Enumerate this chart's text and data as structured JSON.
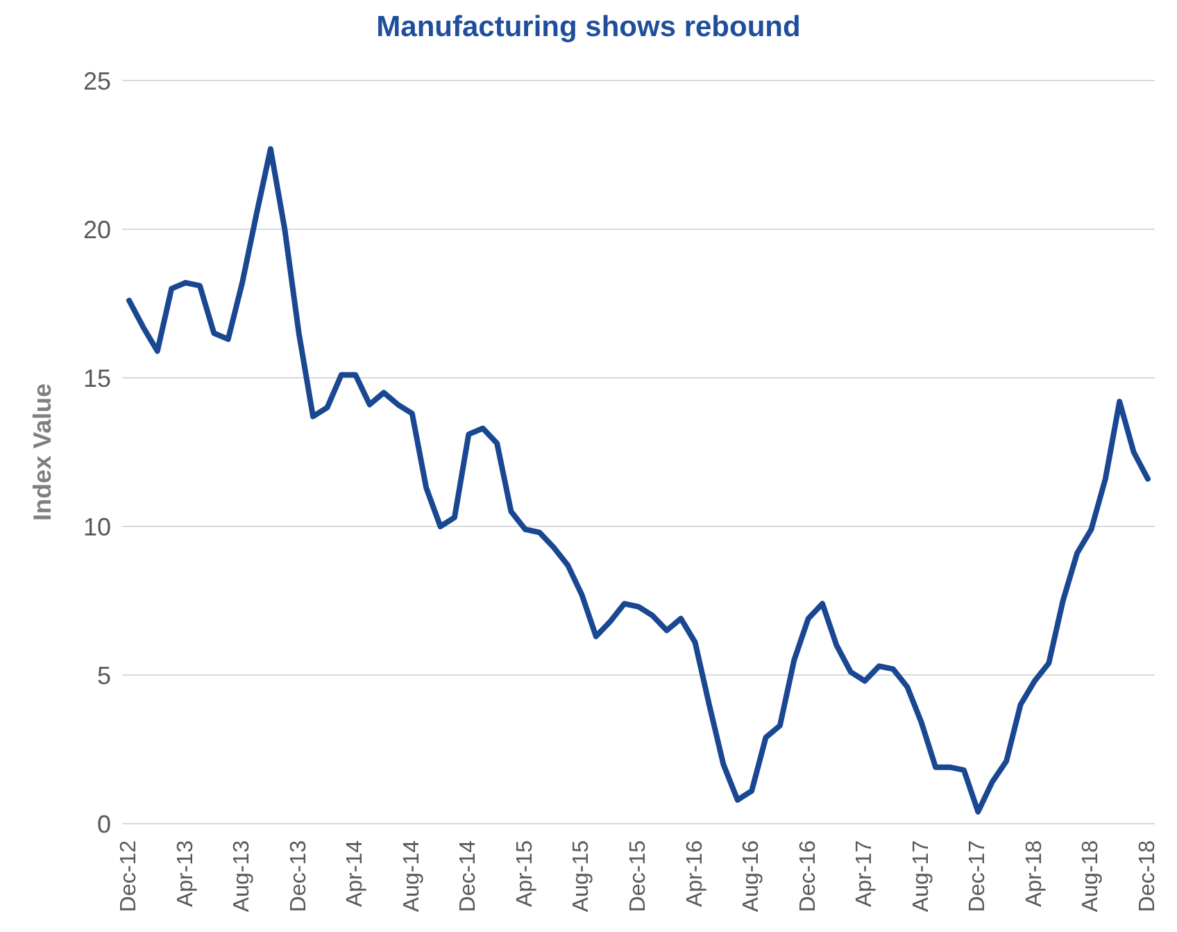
{
  "chart_data": {
    "type": "line",
    "title": "Manufacturing shows rebound",
    "ylabel": "Index Value",
    "categories": [
      "Dec-12",
      null,
      null,
      null,
      "Apr-13",
      null,
      null,
      null,
      "Aug-13",
      null,
      null,
      null,
      "Dec-13",
      null,
      null,
      null,
      "Apr-14",
      null,
      null,
      null,
      "Aug-14",
      null,
      null,
      null,
      "Dec-14",
      null,
      null,
      null,
      "Apr-15",
      null,
      null,
      null,
      "Aug-15",
      null,
      null,
      null,
      "Dec-15",
      null,
      null,
      null,
      "Apr-16",
      null,
      null,
      null,
      "Aug-16",
      null,
      null,
      null,
      "Dec-16",
      null,
      null,
      null,
      "Apr-17",
      null,
      null,
      null,
      "Aug-17",
      null,
      null,
      null,
      "Dec-17",
      null,
      null,
      null,
      "Apr-18",
      null,
      null,
      null,
      "Aug-18",
      null,
      null,
      null,
      "Dec-18"
    ],
    "series": [
      {
        "color": "#1a4791",
        "values": [
          17.6,
          16.7,
          15.9,
          18.0,
          18.2,
          18.1,
          16.5,
          16.3,
          18.2,
          20.5,
          22.7,
          20.0,
          16.5,
          13.7,
          14.0,
          15.1,
          15.1,
          14.1,
          14.5,
          14.1,
          13.8,
          11.3,
          10.0,
          10.3,
          13.1,
          13.3,
          12.8,
          10.5,
          9.9,
          9.8,
          9.3,
          8.7,
          7.7,
          6.3,
          6.8,
          7.4,
          7.3,
          7.0,
          6.5,
          6.9,
          6.1,
          4.0,
          2.0,
          0.8,
          1.1,
          2.9,
          3.3,
          5.5,
          6.9,
          7.4,
          6.0,
          5.1,
          4.8,
          5.3,
          5.2,
          4.6,
          3.4,
          1.9,
          1.9,
          1.8,
          0.4,
          1.4,
          2.1,
          4.0,
          4.8,
          5.4,
          7.5,
          9.1,
          9.9,
          11.6,
          14.2,
          12.5,
          11.6
        ]
      }
    ],
    "ylim": [
      0,
      25
    ],
    "yticks": [
      0,
      5,
      10,
      15,
      20,
      25
    ],
    "grid": "y",
    "legend": false,
    "marker": "none",
    "line_style": "solid"
  }
}
